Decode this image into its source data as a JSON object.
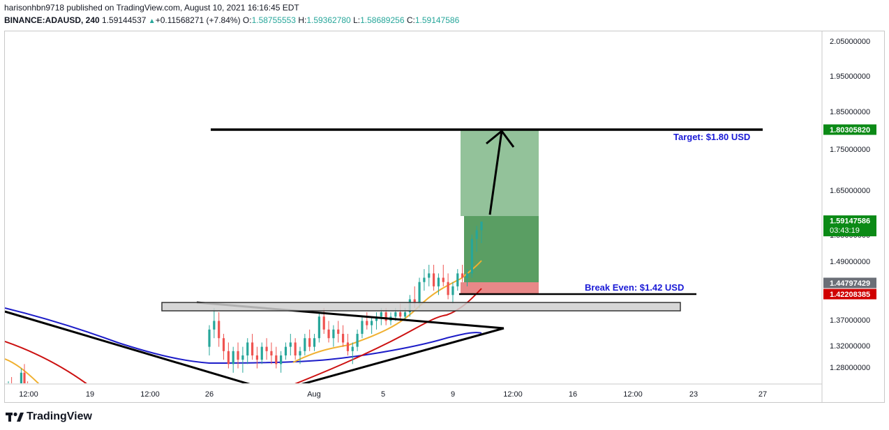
{
  "header": {
    "line1": "harisonhbn9718 published on TradingView.com, August 10, 2021 16:16:45 EDT",
    "symbol": "BINANCE:ADAUSD, 240",
    "last": "1.59144537",
    "change": "+0.11568271 (+7.84%)",
    "o_label": "O:",
    "o": "1.58755553",
    "h_label": "H:",
    "h": "1.59362780",
    "l_label": "L:",
    "l": "1.58689256",
    "c_label": "C:",
    "c": "1.59147586"
  },
  "brand": {
    "name": "TradingView"
  },
  "colors": {
    "up": "#26a69a",
    "down": "#ef5350",
    "green_tag": "#0b8a16",
    "red_tag": "#d00000",
    "gray_tag": "#6b6f77"
  },
  "chart_data": {
    "type": "candlestick",
    "symbol": "BINANCE:ADAUSD",
    "interval": "240",
    "y_axis_labels": [
      "2.05000000",
      "1.95000000",
      "1.85000000",
      "1.75000000",
      "1.65000000",
      "1.55000000",
      "1.49000000",
      "1.37000000",
      "1.32000000",
      "1.28000000"
    ],
    "x_axis_labels": [
      "12:00",
      "19",
      "12:00",
      "26",
      "Aug",
      "5",
      "9",
      "12:00",
      "16",
      "12:00",
      "23",
      "27"
    ],
    "price_tags": [
      {
        "value": "1.80305820",
        "color": "#0b8a16"
      },
      {
        "value": "1.59147586",
        "sub": "03:43:19",
        "color": "#0b8a16"
      },
      {
        "value": "1.44797429",
        "color": "#6b6f77"
      },
      {
        "value": "1.42208385",
        "color": "#d00000"
      }
    ],
    "annotations": {
      "target": "Target: $1.80 USD",
      "breakeven": "Break Even: $1.42 USD"
    },
    "levels": {
      "target": 1.8030582,
      "last": 1.59147586,
      "breakeven": 1.42208385,
      "entry": 1.44797429
    },
    "candles": [
      [
        1.19,
        1.22,
        1.17,
        1.21
      ],
      [
        1.21,
        1.23,
        1.18,
        1.19
      ],
      [
        1.19,
        1.2,
        1.16,
        1.17
      ],
      [
        1.17,
        1.19,
        1.15,
        1.18
      ],
      [
        1.18,
        1.25,
        1.17,
        1.24
      ],
      [
        1.24,
        1.26,
        1.2,
        1.21
      ],
      [
        1.21,
        1.22,
        1.18,
        1.19
      ],
      [
        1.3,
        1.35,
        1.28,
        1.34
      ],
      [
        1.34,
        1.39,
        1.32,
        1.36
      ],
      [
        1.36,
        1.38,
        1.3,
        1.32
      ],
      [
        1.32,
        1.33,
        1.27,
        1.29
      ],
      [
        1.29,
        1.31,
        1.25,
        1.26
      ],
      [
        1.26,
        1.3,
        1.24,
        1.29
      ],
      [
        1.29,
        1.31,
        1.25,
        1.27
      ],
      [
        1.27,
        1.3,
        1.24,
        1.28
      ],
      [
        1.28,
        1.32,
        1.26,
        1.31
      ],
      [
        1.31,
        1.33,
        1.27,
        1.28
      ],
      [
        1.28,
        1.3,
        1.25,
        1.27
      ],
      [
        1.27,
        1.31,
        1.26,
        1.3
      ],
      [
        1.3,
        1.32,
        1.27,
        1.29
      ],
      [
        1.29,
        1.31,
        1.26,
        1.28
      ],
      [
        1.28,
        1.3,
        1.25,
        1.26
      ],
      [
        1.26,
        1.29,
        1.24,
        1.28
      ],
      [
        1.28,
        1.31,
        1.27,
        1.3
      ],
      [
        1.3,
        1.33,
        1.28,
        1.31
      ],
      [
        1.31,
        1.32,
        1.27,
        1.28
      ],
      [
        1.28,
        1.3,
        1.26,
        1.29
      ],
      [
        1.29,
        1.33,
        1.28,
        1.32
      ],
      [
        1.32,
        1.34,
        1.29,
        1.3
      ],
      [
        1.3,
        1.33,
        1.29,
        1.32
      ],
      [
        1.32,
        1.38,
        1.31,
        1.37
      ],
      [
        1.37,
        1.39,
        1.33,
        1.34
      ],
      [
        1.34,
        1.36,
        1.31,
        1.32
      ],
      [
        1.32,
        1.35,
        1.3,
        1.34
      ],
      [
        1.34,
        1.36,
        1.31,
        1.33
      ],
      [
        1.33,
        1.35,
        1.3,
        1.31
      ],
      [
        1.31,
        1.33,
        1.28,
        1.29
      ],
      [
        1.29,
        1.31,
        1.26,
        1.3
      ],
      [
        1.3,
        1.34,
        1.29,
        1.33
      ],
      [
        1.33,
        1.37,
        1.32,
        1.36
      ],
      [
        1.36,
        1.38,
        1.34,
        1.35
      ],
      [
        1.35,
        1.37,
        1.33,
        1.36
      ],
      [
        1.36,
        1.38,
        1.34,
        1.37
      ],
      [
        1.37,
        1.39,
        1.35,
        1.38
      ],
      [
        1.38,
        1.39,
        1.35,
        1.36
      ],
      [
        1.36,
        1.38,
        1.35,
        1.37
      ],
      [
        1.37,
        1.39,
        1.36,
        1.38
      ],
      [
        1.38,
        1.4,
        1.36,
        1.37
      ],
      [
        1.37,
        1.39,
        1.36,
        1.38
      ],
      [
        1.38,
        1.42,
        1.37,
        1.41
      ],
      [
        1.41,
        1.44,
        1.39,
        1.4
      ],
      [
        1.4,
        1.46,
        1.39,
        1.45
      ],
      [
        1.45,
        1.48,
        1.43,
        1.46
      ],
      [
        1.46,
        1.49,
        1.44,
        1.47
      ],
      [
        1.47,
        1.49,
        1.43,
        1.44
      ],
      [
        1.44,
        1.47,
        1.42,
        1.46
      ],
      [
        1.46,
        1.49,
        1.44,
        1.45
      ],
      [
        1.45,
        1.47,
        1.41,
        1.42
      ],
      [
        1.42,
        1.45,
        1.4,
        1.44
      ],
      [
        1.44,
        1.48,
        1.43,
        1.47
      ],
      [
        1.47,
        1.49,
        1.45,
        1.46
      ],
      [
        1.46,
        1.48,
        1.44,
        1.47
      ],
      [
        1.47,
        1.56,
        1.46,
        1.55
      ],
      [
        1.55,
        1.58,
        1.52,
        1.57
      ],
      [
        1.57,
        1.59,
        1.54,
        1.59
      ]
    ]
  }
}
